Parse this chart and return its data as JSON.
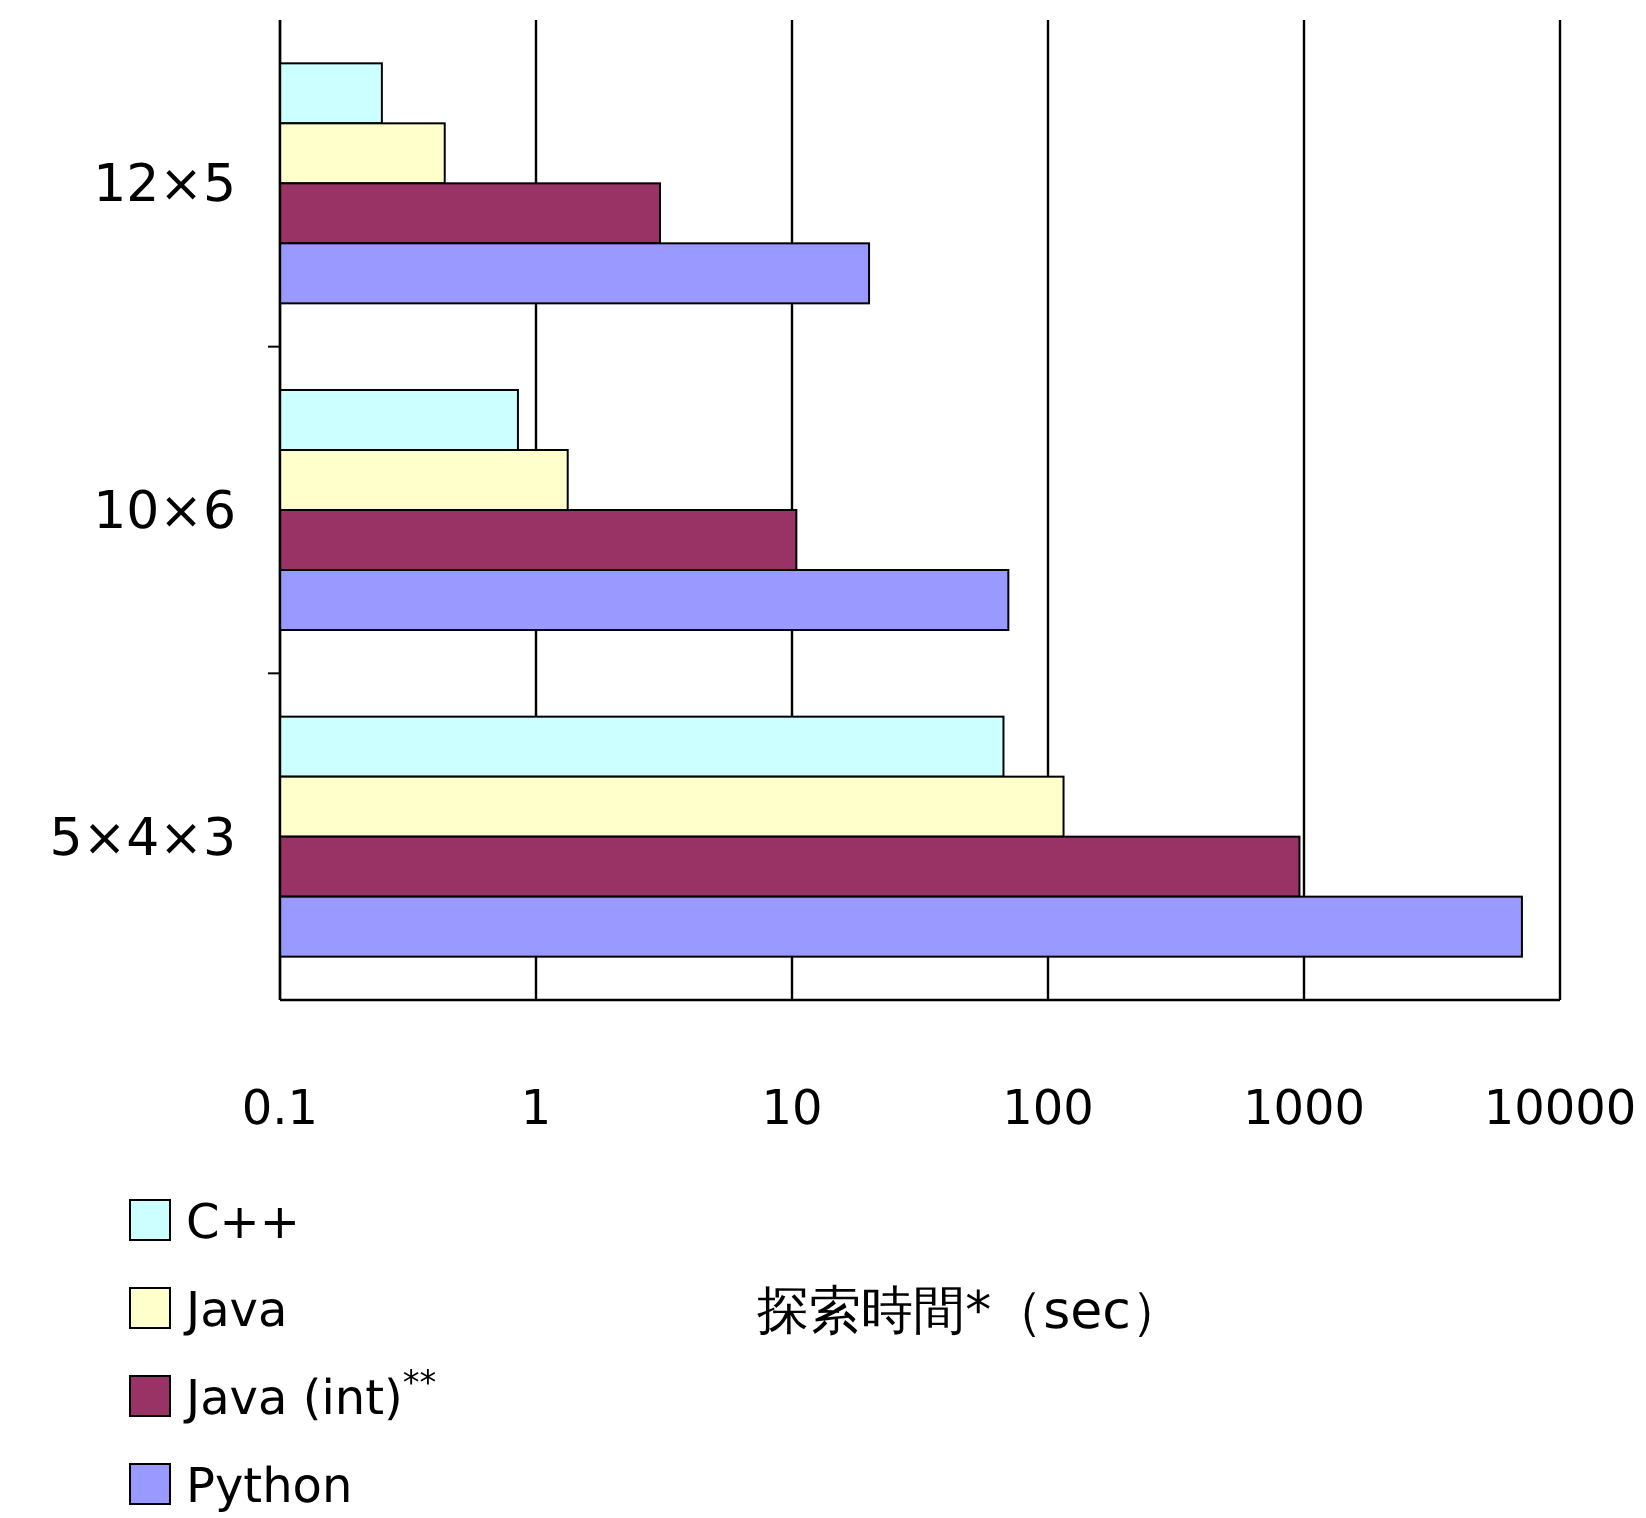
{
  "chart_data": {
    "type": "bar",
    "orientation": "horizontal",
    "log": "x",
    "grid": "x",
    "legend": "bottom left",
    "xlabel": "探索時間*（sec）",
    "categories": [
      "12×5",
      "10×6",
      "5×4×3"
    ],
    "xlim": [
      0.1,
      10000
    ],
    "xticks": [
      0.1,
      1,
      10,
      100,
      1000,
      10000
    ],
    "series": [
      {
        "name": "C++",
        "color": "#ccffff",
        "values": [
          0.25,
          0.85,
          67
        ]
      },
      {
        "name": "Java",
        "color": "#ffffcc",
        "values": [
          0.44,
          1.33,
          115
        ]
      },
      {
        "name": "Java (int)$^{**}$",
        "color": "#993366",
        "values": [
          3.05,
          10.4,
          960
        ]
      },
      {
        "name": "Python",
        "color": "#9999ff",
        "values": [
          20,
          70,
          7100
        ]
      }
    ]
  }
}
